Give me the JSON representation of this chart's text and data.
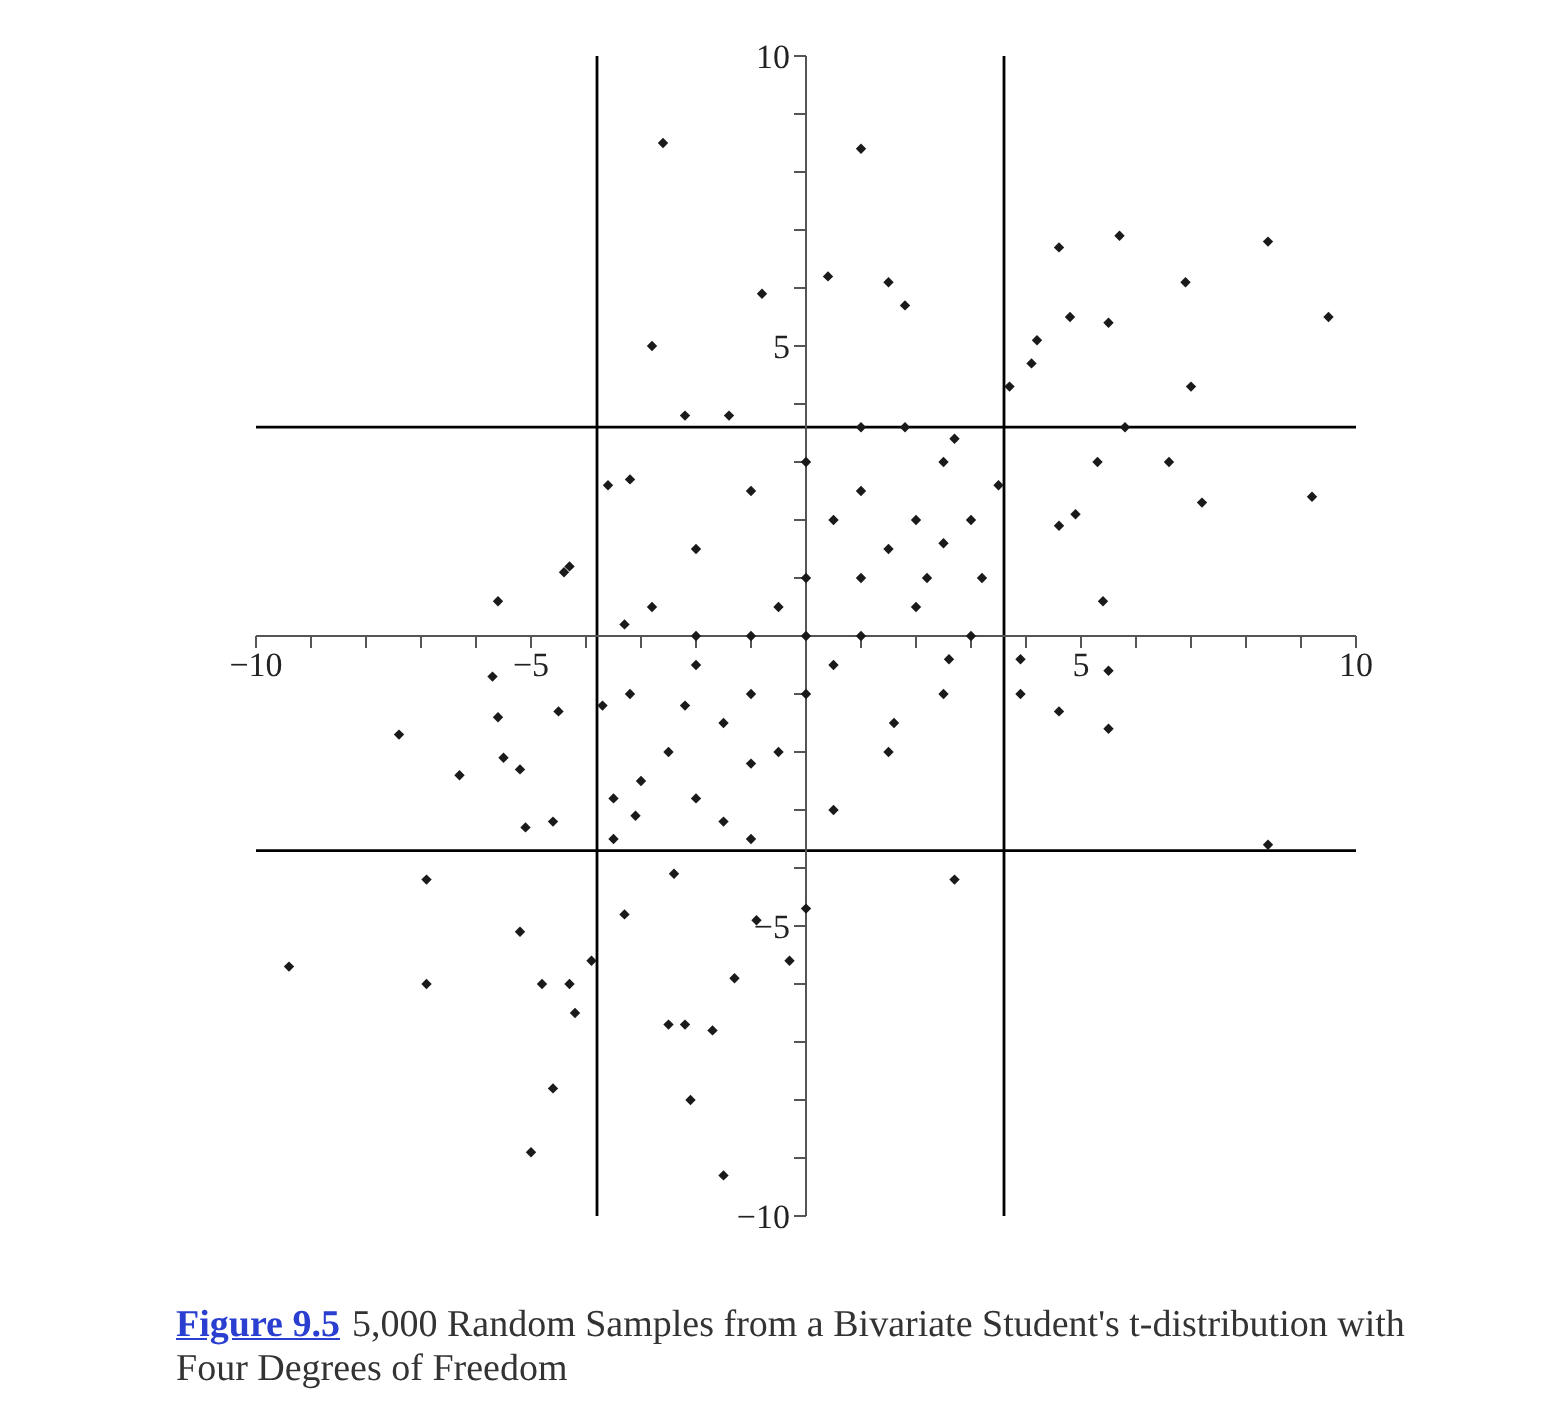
{
  "chart_data": {
    "type": "scatter",
    "marker": "diamond",
    "grid": false,
    "xlim": [
      -10,
      10
    ],
    "ylim": [
      -10,
      10
    ],
    "xticks": [
      {
        "value": -10,
        "label": "−10"
      },
      {
        "value": -9,
        "label": null
      },
      {
        "value": -8,
        "label": null
      },
      {
        "value": -7,
        "label": null
      },
      {
        "value": -6,
        "label": null
      },
      {
        "value": -5,
        "label": "−5"
      },
      {
        "value": -4,
        "label": null
      },
      {
        "value": -3,
        "label": null
      },
      {
        "value": -2,
        "label": null
      },
      {
        "value": -1,
        "label": null
      },
      {
        "value": 1,
        "label": null
      },
      {
        "value": 2,
        "label": null
      },
      {
        "value": 3,
        "label": null
      },
      {
        "value": 4,
        "label": null
      },
      {
        "value": 5,
        "label": "5"
      },
      {
        "value": 6,
        "label": null
      },
      {
        "value": 7,
        "label": null
      },
      {
        "value": 8,
        "label": null
      },
      {
        "value": 9,
        "label": null
      },
      {
        "value": 10,
        "label": "10"
      }
    ],
    "yticks": [
      {
        "value": -10,
        "label": "−10"
      },
      {
        "value": -9,
        "label": null
      },
      {
        "value": -8,
        "label": null
      },
      {
        "value": -7,
        "label": null
      },
      {
        "value": -6,
        "label": null
      },
      {
        "value": -5,
        "label": "−5"
      },
      {
        "value": -4,
        "label": null
      },
      {
        "value": -3,
        "label": null
      },
      {
        "value": -2,
        "label": null
      },
      {
        "value": -1,
        "label": null
      },
      {
        "value": 1,
        "label": null
      },
      {
        "value": 2,
        "label": null
      },
      {
        "value": 3,
        "label": null
      },
      {
        "value": 4,
        "label": null
      },
      {
        "value": 5,
        "label": "5"
      },
      {
        "value": 6,
        "label": null
      },
      {
        "value": 7,
        "label": null
      },
      {
        "value": 8,
        "label": null
      },
      {
        "value": 9,
        "label": null
      },
      {
        "value": 10,
        "label": "10"
      }
    ],
    "ref_lines": [
      {
        "axis": "x",
        "value": -3.8,
        "color": "#000000"
      },
      {
        "axis": "x",
        "value": 3.6,
        "color": "#000000"
      },
      {
        "axis": "y",
        "value": 3.6,
        "color": "#000000"
      },
      {
        "axis": "y",
        "value": -3.7,
        "color": "#000000"
      }
    ],
    "series": [
      {
        "color": "#1a1a1a",
        "x": [
          -2.6,
          1.0,
          -2.8,
          -0.8,
          0.4,
          1.5,
          1.8,
          4.6,
          5.7,
          8.4,
          9.5,
          6.9,
          5.5,
          7.0,
          3.7,
          4.1,
          4.2,
          4.8,
          5.8,
          6.6,
          7.2,
          9.2,
          5.4,
          4.9,
          5.3,
          4.6,
          2.5,
          2.6,
          5.5,
          4.6,
          5.5,
          1.6,
          8.4,
          2.7,
          3.9,
          3.9,
          -9.4,
          -6.9,
          -6.9,
          -7.4,
          -6.3,
          -5.6,
          -5.0,
          -4.6,
          -4.8,
          -5.2,
          -4.3,
          -4.2,
          -3.9,
          -1.5,
          -2.1,
          -2.2,
          -2.5,
          -1.7,
          -1.3,
          -0.9,
          -3.3,
          -0.3,
          0.0,
          -5.5,
          -5.7,
          -5.2,
          -4.6,
          -5.1,
          -5.6,
          -4.3,
          -3.6,
          -3.2,
          -4.4,
          -2.2,
          -1.4,
          -3.7,
          -3.5,
          -4.5,
          -3.1,
          -2.4,
          -3.0,
          -2.5,
          -2.0,
          -1.5,
          -1.0,
          0.5,
          1.5,
          2.5,
          3.0,
          3.2,
          3.0,
          2.5,
          1.8,
          1.0,
          0.0,
          -1.0,
          -2.0,
          -2.8,
          -3.2,
          -2.0,
          -1.0,
          0.0,
          1.0,
          2.0,
          0.0,
          1.0,
          -1.0,
          0.0,
          -1.5,
          1.5,
          0.5,
          -0.5,
          2.0,
          -2.0,
          0.5,
          -0.5,
          2.2,
          -2.2,
          1.0,
          -1.0,
          3.5,
          -3.5,
          2.7,
          -3.3
        ],
        "values": [
          8.5,
          8.4,
          5.0,
          5.9,
          6.2,
          6.1,
          5.7,
          6.7,
          6.9,
          6.8,
          5.5,
          6.1,
          5.4,
          4.3,
          4.3,
          4.7,
          5.1,
          5.5,
          3.6,
          3.0,
          2.3,
          2.4,
          0.6,
          2.1,
          3.0,
          1.9,
          1.6,
          -0.4,
          -1.6,
          -1.3,
          -0.6,
          -1.5,
          -3.6,
          -4.2,
          -1.0,
          -0.4,
          -5.7,
          -6.0,
          -4.2,
          -1.7,
          -2.4,
          -1.4,
          -8.9,
          -7.8,
          -6.0,
          -5.1,
          -6.0,
          -6.5,
          -5.6,
          -9.3,
          -8.0,
          -6.7,
          -6.7,
          -6.8,
          -5.9,
          -4.9,
          -4.8,
          -5.6,
          -4.7,
          -2.1,
          -0.7,
          -2.3,
          -3.2,
          -3.3,
          0.6,
          1.2,
          2.6,
          2.7,
          1.1,
          3.8,
          3.8,
          -1.2,
          -3.5,
          -1.3,
          -3.1,
          -4.1,
          -2.5,
          -2.0,
          -2.8,
          -3.2,
          -3.5,
          -3.0,
          -2.0,
          -1.0,
          0.0,
          1.0,
          2.0,
          3.0,
          3.6,
          3.6,
          3.0,
          2.5,
          1.5,
          0.5,
          -1.0,
          0.0,
          -1.0,
          0.0,
          1.0,
          2.0,
          1.0,
          0.0,
          0.0,
          -1.0,
          -1.5,
          1.5,
          -0.5,
          0.5,
          0.5,
          -0.5,
          2.0,
          -2.0,
          1.0,
          -1.2,
          2.5,
          -2.2,
          2.6,
          -2.8,
          3.4,
          0.2
        ]
      }
    ],
    "annotations": [
      "Figure 9.5",
      "5,000 Random Samples from a Bivariate Student's t-distribution with Four Degrees of Freedom"
    ]
  }
}
